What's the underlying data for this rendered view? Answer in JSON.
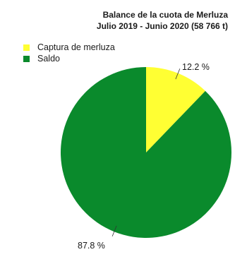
{
  "chart_data": {
    "type": "pie",
    "title": "Balance de la cuota de Merluza",
    "subtitle": "Julio 2019 - Junio 2020 (58 766 t)",
    "categories": [
      "Captura de merluza",
      "Saldo"
    ],
    "values": [
      12.2,
      87.8
    ],
    "data_labels": [
      "12.2 %",
      "87.8 %"
    ],
    "colors": [
      "#ffff33",
      "#0a8a2c"
    ],
    "legend_placement": "top-left",
    "start_angle_deg": 0,
    "direction": "clockwise"
  }
}
